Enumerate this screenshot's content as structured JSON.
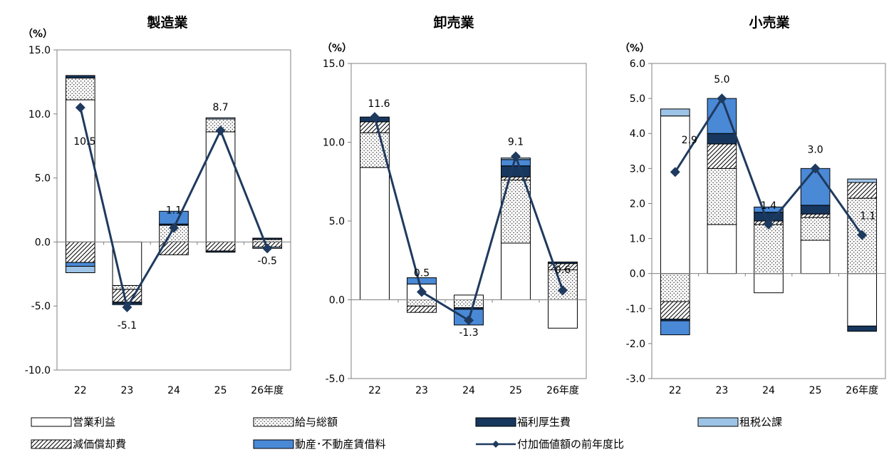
{
  "colors": {
    "operating_profit": "#ffffff",
    "salary": "#f3f3f3",
    "welfare": "#17375e",
    "tax": "#9dc3e6",
    "depreciation": "#ffffff",
    "rent": "#4a89d6",
    "line": "#1f3a5f",
    "axis": "#808080",
    "edge": "#000000"
  },
  "legend": [
    {
      "key": "operating_profit",
      "label": "営業利益",
      "style": "white"
    },
    {
      "key": "salary",
      "label": "給与総額",
      "style": "dots"
    },
    {
      "key": "welfare",
      "label": "福利厚生費",
      "style": "solid"
    },
    {
      "key": "tax",
      "label": "租税公課",
      "style": "solid"
    },
    {
      "key": "depreciation",
      "label": "減価償却費",
      "style": "hatch"
    },
    {
      "key": "rent",
      "label": "動産･不動産賃借料",
      "style": "solid"
    },
    {
      "key": "line",
      "label": "付加価値額の前年度比",
      "style": "line"
    }
  ],
  "chart_data": [
    {
      "type": "bar",
      "title": "製造業",
      "unit": "（%）",
      "categories": [
        "22",
        "23",
        "24",
        "25",
        "26年度"
      ],
      "ylim": [
        -10,
        15
      ],
      "yticks": [
        "15.0",
        "10.0",
        "5.0",
        "0.0",
        "-5.0",
        "-10.0"
      ],
      "stack_order": [
        "operating_profit",
        "salary",
        "depreciation",
        "welfare",
        "rent",
        "tax"
      ],
      "series": [
        {
          "key": "operating_profit",
          "name": "営業利益",
          "values": [
            11.1,
            -3.4,
            0.0,
            8.6,
            0.0
          ]
        },
        {
          "key": "salary",
          "name": "給与総額",
          "values": [
            1.7,
            -0.3,
            1.3,
            1.0,
            0.2
          ]
        },
        {
          "key": "depreciation",
          "name": "減価償却費",
          "values": [
            -1.6,
            -1.0,
            -1.0,
            -0.7,
            -0.4
          ]
        },
        {
          "key": "welfare",
          "name": "福利厚生費",
          "values": [
            0.2,
            -0.1,
            0.1,
            -0.1,
            0.1
          ]
        },
        {
          "key": "rent",
          "name": "動産･不動産賃借料",
          "values": [
            -0.3,
            -0.1,
            1.0,
            0.0,
            0.0
          ]
        },
        {
          "key": "tax",
          "name": "租税公課",
          "values": [
            -0.5,
            0.0,
            0.0,
            0.1,
            -0.1
          ]
        }
      ],
      "line": {
        "name": "付加価値額の前年度比",
        "values": [
          10.5,
          -5.1,
          1.1,
          8.7,
          -0.5
        ],
        "labels": [
          "10.5",
          "-5.1",
          "1.1",
          "8.7",
          "-0.5"
        ]
      }
    },
    {
      "type": "bar",
      "title": "卸売業",
      "unit": "（%）",
      "categories": [
        "22",
        "23",
        "24",
        "25",
        "26年度"
      ],
      "ylim": [
        -5,
        15
      ],
      "yticks": [
        "15.0",
        "10.0",
        "5.0",
        "0.0",
        "-5.0"
      ],
      "stack_order": [
        "operating_profit",
        "salary",
        "depreciation",
        "welfare",
        "rent",
        "tax"
      ],
      "series": [
        {
          "key": "operating_profit",
          "name": "営業利益",
          "values": [
            8.4,
            1.0,
            0.3,
            3.6,
            -1.8
          ]
        },
        {
          "key": "salary",
          "name": "給与総額",
          "values": [
            2.2,
            -0.4,
            -0.5,
            4.0,
            1.9
          ]
        },
        {
          "key": "depreciation",
          "name": "減価償却費",
          "values": [
            0.7,
            -0.4,
            0.0,
            0.2,
            0.4
          ]
        },
        {
          "key": "welfare",
          "name": "福利厚生費",
          "values": [
            0.3,
            0.0,
            -0.1,
            0.7,
            0.1
          ]
        },
        {
          "key": "rent",
          "name": "動産･不動産賃借料",
          "values": [
            0.0,
            0.4,
            -1.0,
            0.4,
            0.0
          ]
        },
        {
          "key": "tax",
          "name": "租税公課",
          "values": [
            0.0,
            0.0,
            0.0,
            0.1,
            0.0
          ]
        }
      ],
      "line": {
        "name": "付加価値額の前年度比",
        "values": [
          11.6,
          0.5,
          -1.3,
          9.1,
          0.6
        ],
        "labels": [
          "11.6",
          "0.5",
          "-1.3",
          "9.1",
          "0.6"
        ]
      }
    },
    {
      "type": "bar",
      "title": "小売業",
      "unit": "（%）",
      "categories": [
        "22",
        "23",
        "24",
        "25",
        "26年度"
      ],
      "ylim": [
        -3,
        6
      ],
      "yticks": [
        "6.0",
        "5.0",
        "4.0",
        "3.0",
        "2.0",
        "1.0",
        "0.0",
        "-1.0",
        "-2.0",
        "-3.0"
      ],
      "stack_order": [
        "operating_profit",
        "salary",
        "depreciation",
        "welfare",
        "rent",
        "tax"
      ],
      "series": [
        {
          "key": "operating_profit",
          "name": "営業利益",
          "values": [
            4.5,
            1.4,
            -0.55,
            0.95,
            -1.5
          ]
        },
        {
          "key": "salary",
          "name": "給与総額",
          "values": [
            -0.8,
            1.6,
            1.4,
            0.65,
            2.15
          ]
        },
        {
          "key": "depreciation",
          "name": "減価償却費",
          "values": [
            -0.5,
            0.7,
            0.1,
            0.1,
            0.45
          ]
        },
        {
          "key": "welfare",
          "name": "福利厚生費",
          "values": [
            -0.05,
            0.3,
            0.25,
            0.25,
            -0.15
          ]
        },
        {
          "key": "rent",
          "name": "動産･不動産賃借料",
          "values": [
            -0.4,
            1.0,
            0.15,
            1.05,
            0.0
          ]
        },
        {
          "key": "tax",
          "name": "租税公課",
          "values": [
            0.2,
            0.0,
            0.0,
            0.0,
            0.1
          ]
        }
      ],
      "line": {
        "name": "付加価値額の前年度比",
        "values": [
          2.9,
          5.0,
          1.4,
          3.0,
          1.1
        ],
        "labels": [
          "2.9",
          "5.0",
          "1.4",
          "3.0",
          "1.1"
        ]
      }
    }
  ]
}
